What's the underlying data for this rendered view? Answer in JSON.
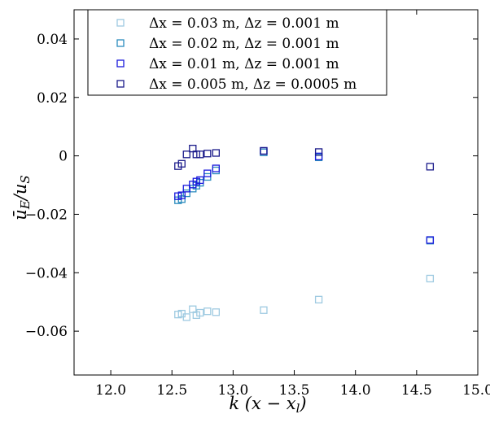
{
  "chart_data": {
    "type": "scatter",
    "xlabel": "k (x − xl)",
    "ylabel": "ūE/uS",
    "xlim": [
      11.7,
      15.0
    ],
    "ylim": [
      -0.075,
      0.05
    ],
    "xticks": [
      12.0,
      12.5,
      13.0,
      13.5,
      14.0,
      14.5,
      15.0
    ],
    "xtick_labels": [
      "12.0",
      "12.5",
      "13.0",
      "13.5",
      "14.0",
      "14.5",
      "15.0"
    ],
    "yticks": [
      0.04,
      0.02,
      0,
      -0.02,
      -0.04,
      -0.06
    ],
    "ytick_labels": [
      "0.04",
      "0.02",
      "0",
      "−0.02",
      "−0.04",
      "−0.06"
    ],
    "grid": false,
    "legend_position": "top-left",
    "series": [
      {
        "name": "Δx = 0.03 m, Δz = 0.001 m",
        "color": "#9ecae1",
        "marker": "open-square",
        "points": [
          [
            12.55,
            -0.0543
          ],
          [
            12.58,
            -0.054
          ],
          [
            12.62,
            -0.0552
          ],
          [
            12.67,
            -0.0525
          ],
          [
            12.7,
            -0.0545
          ],
          [
            12.73,
            -0.0537
          ],
          [
            12.79,
            -0.0532
          ],
          [
            12.86,
            -0.0535
          ],
          [
            13.25,
            -0.0528
          ],
          [
            13.7,
            -0.0492
          ],
          [
            14.61,
            -0.042
          ]
        ]
      },
      {
        "name": "Δx = 0.02 m, Δz = 0.001 m",
        "color": "#2b8cbe",
        "marker": "open-square",
        "points": [
          [
            12.55,
            -0.0152
          ],
          [
            12.58,
            -0.0148
          ],
          [
            12.62,
            -0.0128
          ],
          [
            12.67,
            -0.0112
          ],
          [
            12.7,
            -0.0102
          ],
          [
            12.73,
            -0.0092
          ],
          [
            12.79,
            -0.0072
          ],
          [
            12.86,
            -0.005
          ],
          [
            13.25,
            0.0012
          ],
          [
            13.7,
            -0.0005
          ],
          [
            14.61,
            -0.029
          ]
        ]
      },
      {
        "name": "Δx = 0.01 m, Δz = 0.001 m",
        "color": "#1a1adb",
        "marker": "open-square",
        "points": [
          [
            12.55,
            -0.0138
          ],
          [
            12.58,
            -0.0135
          ],
          [
            12.62,
            -0.0112
          ],
          [
            12.67,
            -0.0098
          ],
          [
            12.7,
            -0.0088
          ],
          [
            12.73,
            -0.0083
          ],
          [
            12.79,
            -0.006
          ],
          [
            12.86,
            -0.0043
          ],
          [
            13.25,
            0.0017
          ],
          [
            13.7,
            -0.0002
          ],
          [
            14.61,
            -0.0288
          ]
        ]
      },
      {
        "name": "Δx = 0.005 m, Δz = 0.0005 m",
        "color": "#1a1a8a",
        "marker": "open-square",
        "points": [
          [
            12.55,
            -0.0035
          ],
          [
            12.58,
            -0.0027
          ],
          [
            12.62,
            0.0005
          ],
          [
            12.67,
            0.0025
          ],
          [
            12.7,
            0.0005
          ],
          [
            12.73,
            0.0005
          ],
          [
            12.79,
            0.0008
          ],
          [
            12.86,
            0.001
          ],
          [
            13.25,
            0.0017
          ],
          [
            13.7,
            0.0013
          ],
          [
            14.61,
            -0.0037
          ]
        ]
      }
    ]
  }
}
